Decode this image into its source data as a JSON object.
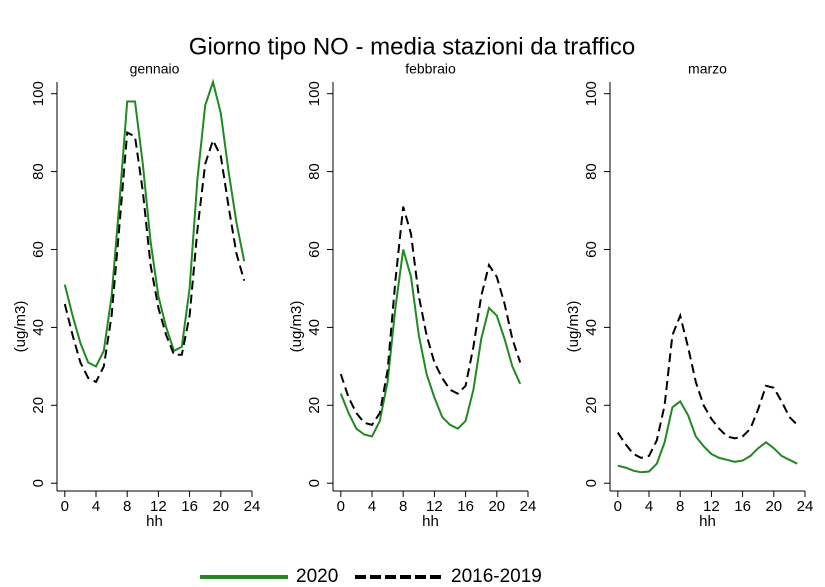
{
  "title": "Giorno tipo NO - media stazioni da traffico",
  "chart_data": [
    {
      "type": "line",
      "title": "gennaio",
      "xlabel": "hh",
      "ylabel": "(ug/m3)",
      "x": [
        0,
        1,
        2,
        3,
        4,
        5,
        6,
        7,
        8,
        9,
        10,
        11,
        12,
        13,
        14,
        15,
        16,
        17,
        18,
        19,
        20,
        21,
        22,
        23
      ],
      "series": [
        {
          "name": "2020",
          "color": "#1f8a1f",
          "linestyle": "solid",
          "values": [
            51,
            43,
            36,
            31,
            30,
            34,
            48,
            72,
            98,
            98,
            82,
            62,
            48,
            40,
            34,
            35,
            50,
            78,
            97,
            103,
            95,
            80,
            67,
            57
          ]
        },
        {
          "name": "2016-2019",
          "color": "#000000",
          "linestyle": "dashed",
          "values": [
            46,
            38,
            31,
            27,
            26,
            30,
            43,
            66,
            90,
            89,
            75,
            56,
            45,
            38,
            33,
            33,
            43,
            65,
            82,
            88,
            84,
            71,
            59,
            52
          ]
        }
      ],
      "xlim": [
        -1,
        24
      ],
      "xticks": [
        0,
        4,
        8,
        12,
        16,
        20,
        24
      ],
      "ylim": [
        -2,
        103
      ],
      "yticks": [
        0,
        20,
        40,
        60,
        80,
        100
      ]
    },
    {
      "type": "line",
      "title": "febbraio",
      "xlabel": "hh",
      "ylabel": "(ug/m3)",
      "x": [
        0,
        1,
        2,
        3,
        4,
        5,
        6,
        7,
        8,
        9,
        10,
        11,
        12,
        13,
        14,
        15,
        16,
        17,
        18,
        19,
        20,
        21,
        22,
        23
      ],
      "series": [
        {
          "name": "2020",
          "color": "#1f8a1f",
          "linestyle": "solid",
          "values": [
            23,
            18,
            14,
            12.5,
            12,
            16,
            26,
            45,
            60,
            53,
            38,
            28,
            22,
            17,
            15,
            14,
            16,
            24,
            37,
            45,
            43,
            37,
            30,
            25.5
          ]
        },
        {
          "name": "2016-2019",
          "color": "#000000",
          "linestyle": "dashed",
          "values": [
            28,
            22,
            18,
            15.5,
            15,
            18,
            29,
            52,
            71,
            64,
            48,
            38,
            31,
            27,
            24,
            23,
            25,
            35,
            48,
            56,
            53,
            46,
            37,
            31
          ]
        }
      ],
      "xlim": [
        -1,
        24
      ],
      "xticks": [
        0,
        4,
        8,
        12,
        16,
        20,
        24
      ],
      "ylim": [
        -2,
        103
      ],
      "yticks": [
        0,
        20,
        40,
        60,
        80,
        100
      ]
    },
    {
      "type": "line",
      "title": "marzo",
      "xlabel": "hh",
      "ylabel": "(ug/m3)",
      "x": [
        0,
        1,
        2,
        3,
        4,
        5,
        6,
        7,
        8,
        9,
        10,
        11,
        12,
        13,
        14,
        15,
        16,
        17,
        18,
        19,
        20,
        21,
        22,
        23
      ],
      "series": [
        {
          "name": "2020",
          "color": "#1f8a1f",
          "linestyle": "solid",
          "values": [
            4.5,
            4,
            3.2,
            2.8,
            3,
            5,
            10.5,
            19.5,
            21,
            17.5,
            12,
            9.5,
            7.5,
            6.5,
            6,
            5.5,
            5.8,
            7,
            9,
            10.5,
            9,
            7,
            6,
            5
          ]
        },
        {
          "name": "2016-2019",
          "color": "#000000",
          "linestyle": "dashed",
          "values": [
            13,
            10,
            7.5,
            6.5,
            7,
            11,
            20,
            38,
            43,
            35,
            26,
            20,
            16.5,
            14,
            12,
            11.5,
            12,
            14,
            19,
            25,
            24.5,
            21,
            17,
            15
          ]
        }
      ],
      "xlim": [
        -1,
        24
      ],
      "xticks": [
        0,
        4,
        8,
        12,
        16,
        20,
        24
      ],
      "ylim": [
        -2,
        103
      ],
      "yticks": [
        0,
        20,
        40,
        60,
        80,
        100
      ]
    }
  ]
}
